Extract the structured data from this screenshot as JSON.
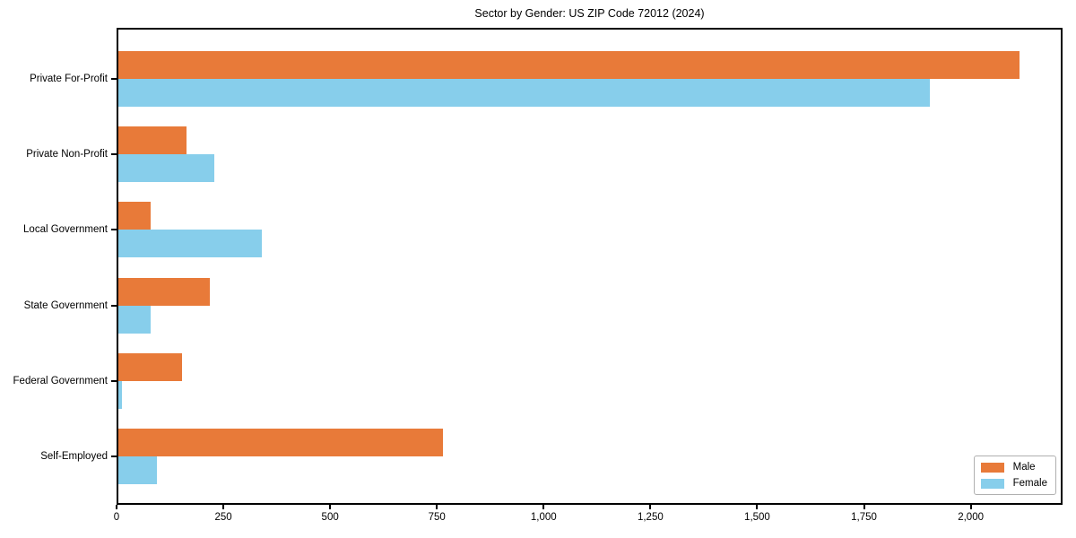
{
  "chart_data": {
    "type": "bar",
    "orientation": "horizontal",
    "title": "Sector by Gender: US ZIP Code 72012 (2024)",
    "categories": [
      "Private For-Profit",
      "Private Non-Profit",
      "Local Government",
      "State Government",
      "Federal Government",
      "Self-Employed"
    ],
    "series": [
      {
        "name": "Male",
        "color": "#e87a39",
        "values": [
          2110,
          160,
          75,
          215,
          150,
          760
        ]
      },
      {
        "name": "Female",
        "color": "#87ceeb",
        "values": [
          1900,
          225,
          335,
          75,
          8,
          90
        ]
      }
    ],
    "xlabel": "",
    "ylabel": "",
    "xlim": [
      0,
      2215
    ],
    "xticks": [
      0,
      250,
      500,
      750,
      1000,
      1250,
      1500,
      1750,
      2000
    ],
    "xtick_labels": [
      "0",
      "250",
      "500",
      "750",
      "1,000",
      "1,250",
      "1,500",
      "1,750",
      "2,000"
    ],
    "grid": false,
    "legend": {
      "position": "lower right"
    }
  }
}
